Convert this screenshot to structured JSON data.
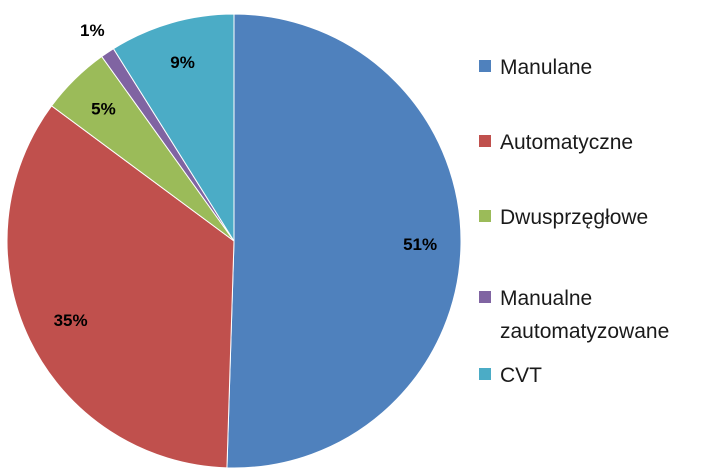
{
  "chart_data": {
    "type": "pie",
    "categories": [
      "Manulane",
      "Automatyczne",
      "Dwusprzęgłowe",
      "Manualne zautomatyzowane",
      "CVT"
    ],
    "values": [
      51,
      35,
      5,
      1,
      9
    ],
    "labels": [
      "51%",
      "35%",
      "5%",
      "1%",
      "9%"
    ],
    "legend_lines": [
      [
        "Manulane"
      ],
      [
        "Automatyczne"
      ],
      [
        "Dwusprzęgłowe"
      ],
      [
        "Manualne",
        "zautomatyzowane"
      ],
      [
        "CVT"
      ]
    ],
    "colors": [
      "#4f81bd",
      "#c0504d",
      "#9bbb59",
      "#8064a2",
      "#4bacc6"
    ],
    "legend_position": "right"
  }
}
